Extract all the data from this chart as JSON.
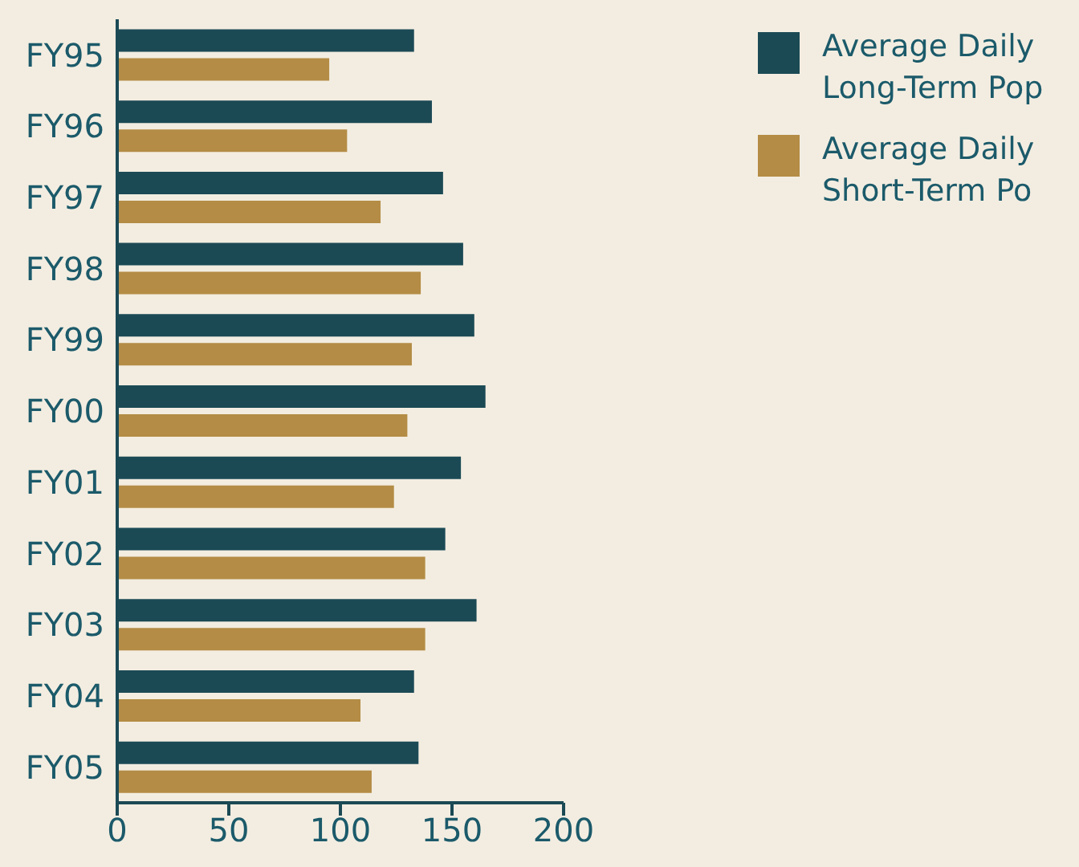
{
  "chart_data": {
    "type": "bar",
    "orientation": "horizontal",
    "categories": [
      "FY95",
      "FY96",
      "FY97",
      "FY98",
      "FY99",
      "FY00",
      "FY01",
      "FY02",
      "FY03",
      "FY04",
      "FY05"
    ],
    "series": [
      {
        "name": "Average Daily Long-Term Pop",
        "color": "#1b4a55",
        "values": [
          133,
          141,
          146,
          155,
          160,
          165,
          154,
          147,
          161,
          133,
          135
        ]
      },
      {
        "name": "Average Daily Short-Term Po",
        "color": "#b48c45",
        "values": [
          95,
          103,
          118,
          136,
          132,
          130,
          124,
          138,
          138,
          109,
          114
        ]
      }
    ],
    "xlim": [
      0,
      200
    ],
    "xticks": [
      0,
      50,
      100,
      150,
      200
    ],
    "grid": false,
    "legend": "top right"
  }
}
